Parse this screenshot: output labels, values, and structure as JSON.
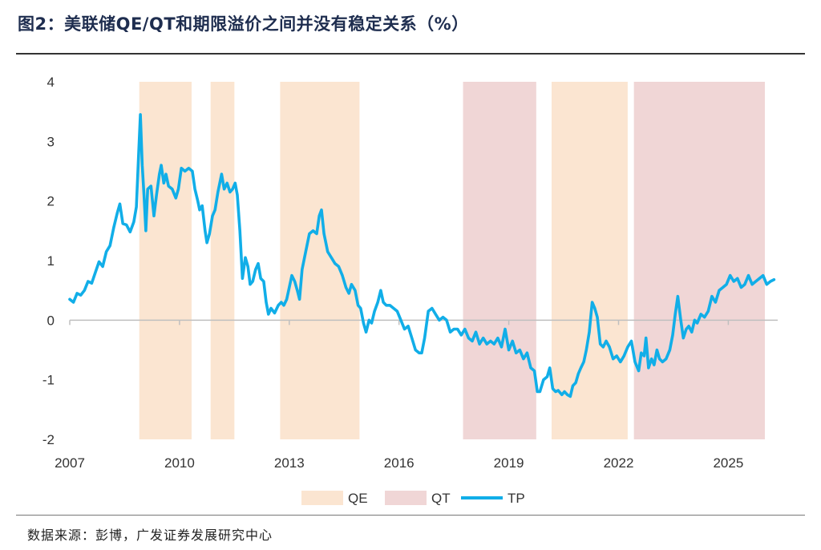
{
  "title": "图2：美联储QE/QT和期限溢价之间并没有稳定关系（%）",
  "source": "数据来源：彭博，广发证券发展研究中心",
  "colors": {
    "qe": "#fbe5d1",
    "qt": "#f0d6d6",
    "tp": "#11aee8",
    "axis": "#bfbfbf"
  },
  "chart_data": {
    "type": "line",
    "title": "美联储QE/QT和期限溢价之间并没有稳定关系（%）",
    "xlim": [
      2007,
      2026.35
    ],
    "ylim": [
      -2,
      4
    ],
    "y_ticks": [
      {
        "value": -2,
        "label": "-2"
      },
      {
        "value": -1,
        "label": "-1"
      },
      {
        "value": 0,
        "label": "0"
      },
      {
        "value": 1,
        "label": "1"
      },
      {
        "value": 2,
        "label": "2"
      },
      {
        "value": 3,
        "label": "3"
      },
      {
        "value": 4,
        "label": "4"
      }
    ],
    "x_ticks": [
      {
        "value": 2007,
        "label": "2007"
      },
      {
        "value": 2010,
        "label": "2010"
      },
      {
        "value": 2013,
        "label": "2013"
      },
      {
        "value": 2016,
        "label": "2016"
      },
      {
        "value": 2019,
        "label": "2019"
      },
      {
        "value": 2022,
        "label": "2022"
      },
      {
        "value": 2025,
        "label": "2025"
      }
    ],
    "legend": [
      {
        "key": "qe",
        "label": "QE",
        "kind": "box"
      },
      {
        "key": "qt",
        "label": "QT",
        "kind": "box"
      },
      {
        "key": "tp",
        "label": "TP",
        "kind": "line"
      }
    ],
    "shaded_periods": [
      {
        "type": "QE",
        "start": 2008.9,
        "end": 2010.33
      },
      {
        "type": "QE",
        "start": 2010.85,
        "end": 2011.5
      },
      {
        "type": "QE",
        "start": 2012.75,
        "end": 2014.92
      },
      {
        "type": "QT",
        "start": 2017.75,
        "end": 2019.75
      },
      {
        "type": "QE",
        "start": 2020.17,
        "end": 2022.25
      },
      {
        "type": "QT",
        "start": 2022.42,
        "end": 2026.0
      }
    ],
    "series": [
      {
        "name": "TP",
        "points": [
          [
            2007.0,
            0.35
          ],
          [
            2007.1,
            0.3
          ],
          [
            2007.2,
            0.45
          ],
          [
            2007.3,
            0.42
          ],
          [
            2007.4,
            0.5
          ],
          [
            2007.5,
            0.65
          ],
          [
            2007.6,
            0.62
          ],
          [
            2007.7,
            0.8
          ],
          [
            2007.8,
            0.98
          ],
          [
            2007.9,
            0.9
          ],
          [
            2008.0,
            1.15
          ],
          [
            2008.1,
            1.25
          ],
          [
            2008.2,
            1.55
          ],
          [
            2008.3,
            1.8
          ],
          [
            2008.37,
            1.95
          ],
          [
            2008.45,
            1.62
          ],
          [
            2008.55,
            1.6
          ],
          [
            2008.65,
            1.48
          ],
          [
            2008.75,
            1.65
          ],
          [
            2008.82,
            1.9
          ],
          [
            2008.88,
            2.75
          ],
          [
            2008.93,
            3.45
          ],
          [
            2008.98,
            2.6
          ],
          [
            2009.03,
            2.1
          ],
          [
            2009.08,
            1.5
          ],
          [
            2009.13,
            2.2
          ],
          [
            2009.22,
            2.25
          ],
          [
            2009.3,
            1.75
          ],
          [
            2009.37,
            2.1
          ],
          [
            2009.45,
            2.45
          ],
          [
            2009.5,
            2.6
          ],
          [
            2009.57,
            2.3
          ],
          [
            2009.63,
            2.45
          ],
          [
            2009.7,
            2.25
          ],
          [
            2009.8,
            2.2
          ],
          [
            2009.9,
            2.05
          ],
          [
            2009.97,
            2.2
          ],
          [
            2010.05,
            2.55
          ],
          [
            2010.15,
            2.5
          ],
          [
            2010.25,
            2.55
          ],
          [
            2010.35,
            2.5
          ],
          [
            2010.42,
            2.2
          ],
          [
            2010.5,
            2.0
          ],
          [
            2010.55,
            1.85
          ],
          [
            2010.62,
            1.92
          ],
          [
            2010.7,
            1.5
          ],
          [
            2010.75,
            1.3
          ],
          [
            2010.82,
            1.45
          ],
          [
            2010.9,
            1.75
          ],
          [
            2010.97,
            1.85
          ],
          [
            2011.05,
            2.15
          ],
          [
            2011.15,
            2.45
          ],
          [
            2011.22,
            2.2
          ],
          [
            2011.3,
            2.3
          ],
          [
            2011.38,
            2.15
          ],
          [
            2011.45,
            2.2
          ],
          [
            2011.52,
            2.3
          ],
          [
            2011.58,
            2.1
          ],
          [
            2011.65,
            1.5
          ],
          [
            2011.72,
            0.7
          ],
          [
            2011.8,
            1.05
          ],
          [
            2011.87,
            0.9
          ],
          [
            2011.93,
            0.6
          ],
          [
            2012.0,
            0.65
          ],
          [
            2012.08,
            0.85
          ],
          [
            2012.15,
            0.95
          ],
          [
            2012.22,
            0.7
          ],
          [
            2012.3,
            0.65
          ],
          [
            2012.37,
            0.3
          ],
          [
            2012.43,
            0.1
          ],
          [
            2012.5,
            0.2
          ],
          [
            2012.6,
            0.12
          ],
          [
            2012.7,
            0.25
          ],
          [
            2012.78,
            0.3
          ],
          [
            2012.85,
            0.25
          ],
          [
            2012.93,
            0.35
          ],
          [
            2013.0,
            0.55
          ],
          [
            2013.07,
            0.75
          ],
          [
            2013.15,
            0.65
          ],
          [
            2013.22,
            0.5
          ],
          [
            2013.28,
            0.35
          ],
          [
            2013.35,
            0.85
          ],
          [
            2013.45,
            1.15
          ],
          [
            2013.55,
            1.45
          ],
          [
            2013.65,
            1.5
          ],
          [
            2013.75,
            1.45
          ],
          [
            2013.82,
            1.75
          ],
          [
            2013.88,
            1.85
          ],
          [
            2013.95,
            1.45
          ],
          [
            2014.05,
            1.15
          ],
          [
            2014.15,
            1.05
          ],
          [
            2014.25,
            0.95
          ],
          [
            2014.35,
            0.9
          ],
          [
            2014.45,
            0.75
          ],
          [
            2014.55,
            0.55
          ],
          [
            2014.63,
            0.45
          ],
          [
            2014.7,
            0.6
          ],
          [
            2014.8,
            0.5
          ],
          [
            2014.88,
            0.25
          ],
          [
            2014.95,
            0.2
          ],
          [
            2015.03,
            -0.05
          ],
          [
            2015.1,
            -0.2
          ],
          [
            2015.18,
            0.0
          ],
          [
            2015.25,
            -0.05
          ],
          [
            2015.33,
            0.15
          ],
          [
            2015.42,
            0.3
          ],
          [
            2015.5,
            0.5
          ],
          [
            2015.57,
            0.3
          ],
          [
            2015.65,
            0.25
          ],
          [
            2015.75,
            0.25
          ],
          [
            2015.85,
            0.2
          ],
          [
            2015.95,
            0.15
          ],
          [
            2016.05,
            0.0
          ],
          [
            2016.15,
            -0.15
          ],
          [
            2016.25,
            -0.1
          ],
          [
            2016.35,
            -0.3
          ],
          [
            2016.45,
            -0.5
          ],
          [
            2016.55,
            -0.55
          ],
          [
            2016.62,
            -0.55
          ],
          [
            2016.7,
            -0.3
          ],
          [
            2016.8,
            0.15
          ],
          [
            2016.9,
            0.2
          ],
          [
            2017.0,
            0.1
          ],
          [
            2017.1,
            0.0
          ],
          [
            2017.2,
            0.05
          ],
          [
            2017.3,
            0.0
          ],
          [
            2017.4,
            -0.2
          ],
          [
            2017.5,
            -0.15
          ],
          [
            2017.6,
            -0.15
          ],
          [
            2017.7,
            -0.25
          ],
          [
            2017.8,
            -0.15
          ],
          [
            2017.9,
            -0.3
          ],
          [
            2018.0,
            -0.35
          ],
          [
            2018.1,
            -0.2
          ],
          [
            2018.2,
            -0.4
          ],
          [
            2018.3,
            -0.3
          ],
          [
            2018.4,
            -0.4
          ],
          [
            2018.5,
            -0.35
          ],
          [
            2018.6,
            -0.4
          ],
          [
            2018.7,
            -0.3
          ],
          [
            2018.8,
            -0.45
          ],
          [
            2018.9,
            -0.15
          ],
          [
            2019.0,
            -0.5
          ],
          [
            2019.1,
            -0.35
          ],
          [
            2019.2,
            -0.55
          ],
          [
            2019.3,
            -0.5
          ],
          [
            2019.4,
            -0.65
          ],
          [
            2019.5,
            -0.55
          ],
          [
            2019.6,
            -0.8
          ],
          [
            2019.7,
            -0.85
          ],
          [
            2019.78,
            -1.2
          ],
          [
            2019.85,
            -1.2
          ],
          [
            2019.95,
            -1.0
          ],
          [
            2020.05,
            -0.95
          ],
          [
            2020.12,
            -0.8
          ],
          [
            2020.2,
            -1.15
          ],
          [
            2020.28,
            -1.2
          ],
          [
            2020.35,
            -1.18
          ],
          [
            2020.45,
            -1.25
          ],
          [
            2020.52,
            -1.2
          ],
          [
            2020.6,
            -1.25
          ],
          [
            2020.68,
            -1.28
          ],
          [
            2020.75,
            -1.1
          ],
          [
            2020.83,
            -1.05
          ],
          [
            2020.9,
            -0.9
          ],
          [
            2020.97,
            -0.8
          ],
          [
            2021.05,
            -0.7
          ],
          [
            2021.12,
            -0.5
          ],
          [
            2021.2,
            -0.2
          ],
          [
            2021.28,
            0.3
          ],
          [
            2021.35,
            0.2
          ],
          [
            2021.42,
            0.05
          ],
          [
            2021.5,
            -0.4
          ],
          [
            2021.58,
            -0.45
          ],
          [
            2021.66,
            -0.35
          ],
          [
            2021.75,
            -0.45
          ],
          [
            2021.85,
            -0.65
          ],
          [
            2021.95,
            -0.6
          ],
          [
            2022.05,
            -0.7
          ],
          [
            2022.15,
            -0.6
          ],
          [
            2022.25,
            -0.45
          ],
          [
            2022.35,
            -0.35
          ],
          [
            2022.45,
            -0.7
          ],
          [
            2022.55,
            -0.85
          ],
          [
            2022.62,
            -0.55
          ],
          [
            2022.7,
            -0.6
          ],
          [
            2022.75,
            -0.3
          ],
          [
            2022.82,
            -0.8
          ],
          [
            2022.9,
            -0.65
          ],
          [
            2022.97,
            -0.75
          ],
          [
            2023.05,
            -0.5
          ],
          [
            2023.12,
            -0.65
          ],
          [
            2023.2,
            -0.7
          ],
          [
            2023.3,
            -0.65
          ],
          [
            2023.4,
            -0.5
          ],
          [
            2023.48,
            -0.25
          ],
          [
            2023.55,
            0.1
          ],
          [
            2023.62,
            0.4
          ],
          [
            2023.7,
            0.0
          ],
          [
            2023.77,
            -0.3
          ],
          [
            2023.85,
            -0.15
          ],
          [
            2023.92,
            -0.1
          ],
          [
            2024.0,
            -0.2
          ],
          [
            2024.08,
            0.0
          ],
          [
            2024.15,
            -0.05
          ],
          [
            2024.25,
            0.1
          ],
          [
            2024.35,
            0.05
          ],
          [
            2024.45,
            0.15
          ],
          [
            2024.55,
            0.4
          ],
          [
            2024.65,
            0.3
          ],
          [
            2024.75,
            0.5
          ],
          [
            2024.85,
            0.55
          ],
          [
            2024.95,
            0.6
          ],
          [
            2025.05,
            0.75
          ],
          [
            2025.15,
            0.65
          ],
          [
            2025.25,
            0.7
          ],
          [
            2025.35,
            0.55
          ],
          [
            2025.45,
            0.6
          ],
          [
            2025.55,
            0.75
          ],
          [
            2025.65,
            0.6
          ],
          [
            2025.75,
            0.65
          ],
          [
            2025.85,
            0.7
          ],
          [
            2025.95,
            0.75
          ],
          [
            2026.05,
            0.6
          ],
          [
            2026.15,
            0.65
          ],
          [
            2026.25,
            0.68
          ]
        ]
      }
    ]
  }
}
